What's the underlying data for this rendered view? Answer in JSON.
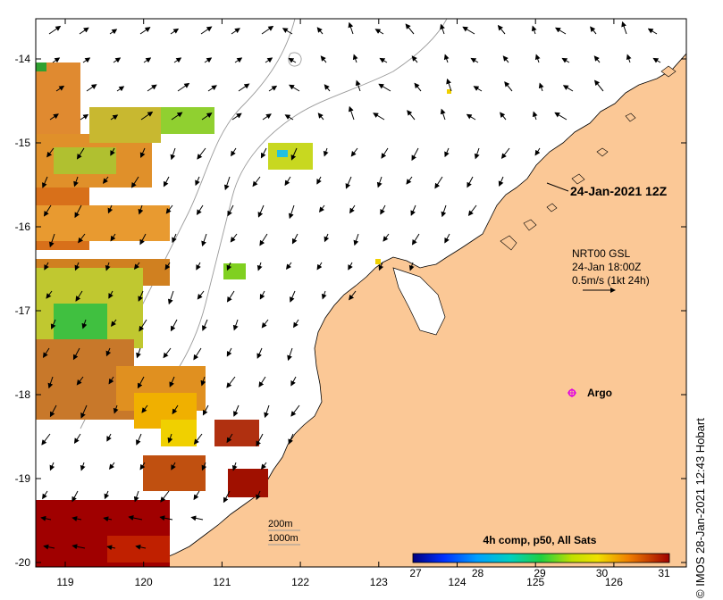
{
  "map": {
    "lon_ticks": [
      "119",
      "120",
      "121",
      "122",
      "123",
      "124",
      "125",
      "126"
    ],
    "lat_ticks": [
      "-14",
      "-15",
      "-16",
      "-17",
      "-18",
      "-19",
      "-20"
    ],
    "land_color": "#fbc896",
    "ocean_color": "#ffffff"
  },
  "timestamp_label": "24-Jan-2021 12Z",
  "current_info": {
    "line1": "NRT00 GSL",
    "line2": "24-Jan 18:00Z",
    "line3": "0.5m/s (1kt 24h)"
  },
  "argo": {
    "label": "Argo",
    "color": "#e000e0"
  },
  "bathymetry_legend": {
    "contour1": "200m",
    "contour2": "1000m"
  },
  "colorbar": {
    "title": "4h comp, p50, All Sats",
    "ticks": [
      "27",
      "28",
      "29",
      "30",
      "31"
    ],
    "colors": [
      "#000080",
      "#0050ff",
      "#00c8e0",
      "#00d070",
      "#80e000",
      "#f0e000",
      "#f09000",
      "#d04000",
      "#a00000"
    ]
  },
  "credit": "IMOS 28-Jan-2021 12:43 Hobart",
  "copyright_symbol": "©"
}
